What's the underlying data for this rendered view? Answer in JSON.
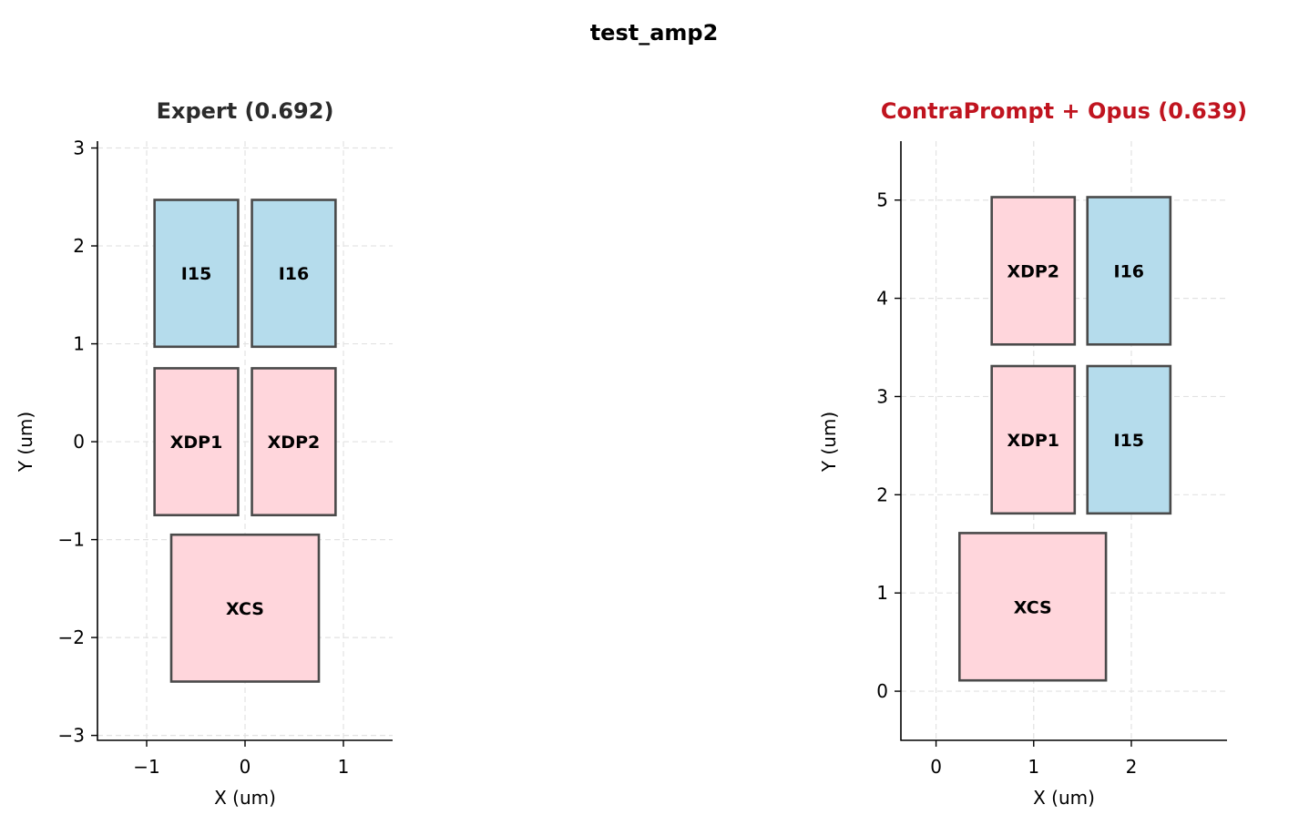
{
  "figure": {
    "title": "test_amp2"
  },
  "chart_data": [
    {
      "type": "floorplan",
      "title": "Expert (0.692)",
      "title_color": "#2b2b2b",
      "xlabel": "X (um)",
      "ylabel": "Y (um)",
      "xlim": [
        -1.5,
        1.5
      ],
      "ylim": [
        -3.05,
        3.07
      ],
      "xticks": [
        -1,
        0,
        1
      ],
      "yticks": [
        -3,
        -2,
        -1,
        0,
        1,
        2,
        3
      ],
      "grid": true,
      "blocks": [
        {
          "name": "I15",
          "x0": -0.92,
          "x1": -0.07,
          "y0": 0.97,
          "y1": 2.47,
          "kind": "current"
        },
        {
          "name": "I16",
          "x0": 0.07,
          "x1": 0.92,
          "y0": 0.97,
          "y1": 2.47,
          "kind": "current"
        },
        {
          "name": "XDP1",
          "x0": -0.92,
          "x1": -0.07,
          "y0": -0.75,
          "y1": 0.75,
          "kind": "transistor"
        },
        {
          "name": "XDP2",
          "x0": 0.07,
          "x1": 0.92,
          "y0": -0.75,
          "y1": 0.75,
          "kind": "transistor"
        },
        {
          "name": "XCS",
          "x0": -0.75,
          "x1": 0.75,
          "y0": -2.45,
          "y1": -0.95,
          "kind": "transistor"
        }
      ]
    },
    {
      "type": "floorplan",
      "title": "ContraPrompt + Opus (0.639)",
      "title_color": "#c0141f",
      "xlabel": "X (um)",
      "ylabel": "Y (um)",
      "xlim": [
        -0.36,
        2.98
      ],
      "ylim": [
        -0.5,
        5.6
      ],
      "xticks": [
        0,
        1,
        2
      ],
      "yticks": [
        0,
        1,
        2,
        3,
        4,
        5
      ],
      "grid": true,
      "blocks": [
        {
          "name": "XDP2",
          "x0": 0.57,
          "x1": 1.42,
          "y0": 3.53,
          "y1": 5.03,
          "kind": "transistor"
        },
        {
          "name": "I16",
          "x0": 1.55,
          "x1": 2.4,
          "y0": 3.53,
          "y1": 5.03,
          "kind": "current"
        },
        {
          "name": "XDP1",
          "x0": 0.57,
          "x1": 1.42,
          "y0": 1.81,
          "y1": 3.31,
          "kind": "transistor"
        },
        {
          "name": "I15",
          "x0": 1.55,
          "x1": 2.4,
          "y0": 1.81,
          "y1": 3.31,
          "kind": "current"
        },
        {
          "name": "XCS",
          "x0": 0.24,
          "x1": 1.74,
          "y0": 0.11,
          "y1": 1.61,
          "kind": "transistor"
        }
      ]
    }
  ],
  "colors": {
    "transistor": "#ffd6dc",
    "current": "#b5dcec",
    "edge": "#4a4a4a",
    "grid": "#e2e2e2",
    "axis": "#000000"
  }
}
